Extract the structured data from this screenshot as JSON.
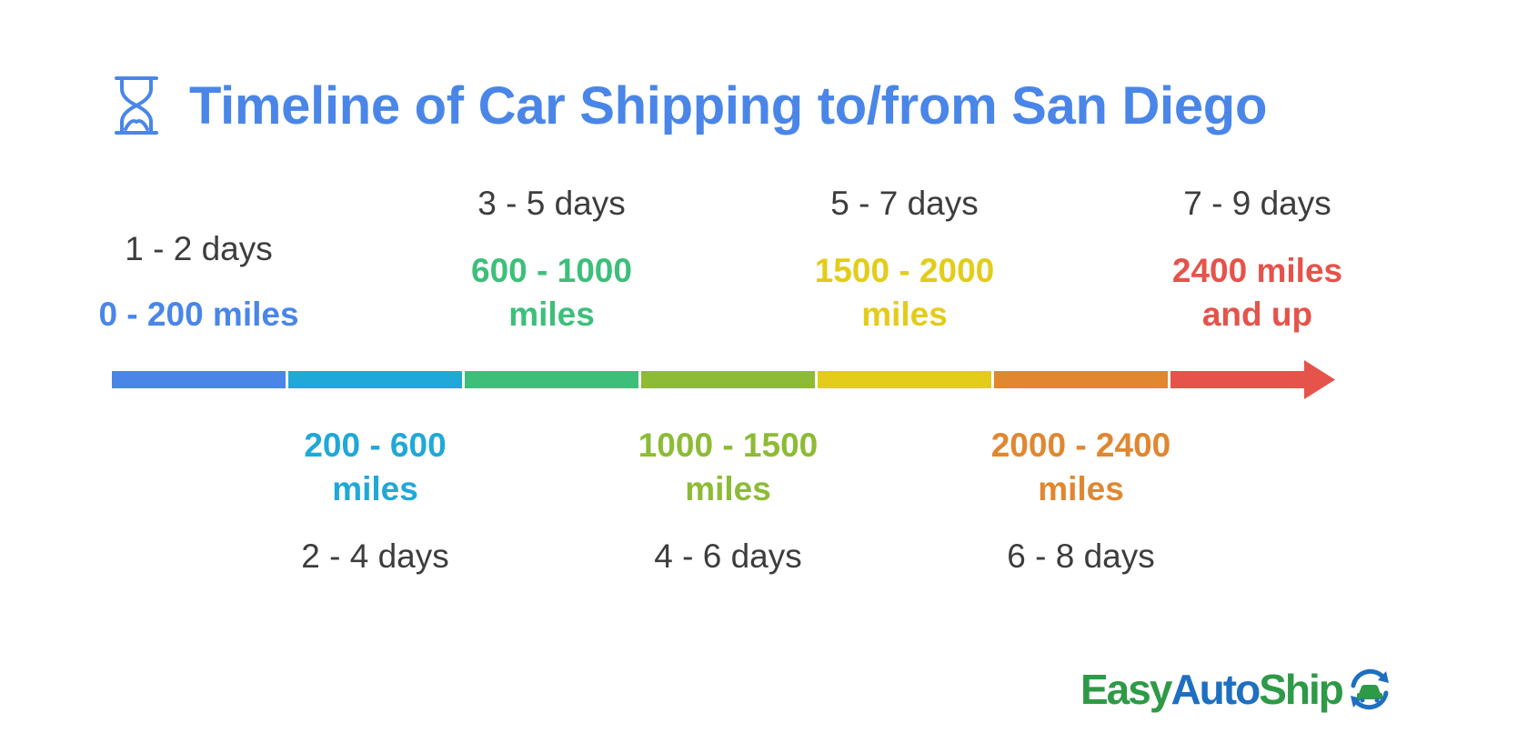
{
  "title": "Timeline of Car Shipping to/from San Diego",
  "title_icon": "hourglass-icon",
  "colors": {
    "title": "#4a86e8",
    "days_text": "#3d3d3d",
    "logo_green": "#2e9a47",
    "logo_blue": "#1f6fc1"
  },
  "stages": [
    {
      "miles": "0 - 200 miles",
      "days": "1 - 2 days",
      "color": "#4a86e8",
      "side": "top"
    },
    {
      "miles": "200 - 600 miles",
      "days": "2 - 4 days",
      "color": "#20a8d8",
      "side": "bottom"
    },
    {
      "miles": "600 - 1000 miles",
      "days": "3 - 5 days",
      "color": "#3dbf7a",
      "side": "top"
    },
    {
      "miles": "1000 - 1500 miles",
      "days": "4 - 6 days",
      "color": "#8dbb35",
      "side": "bottom"
    },
    {
      "miles": "1500 - 2000 miles",
      "days": "5 - 7 days",
      "color": "#e3cc1a",
      "side": "top"
    },
    {
      "miles": "2000 - 2400 miles",
      "days": "6 - 8 days",
      "color": "#e08730",
      "side": "bottom"
    },
    {
      "miles": "2400 miles and up",
      "days": "7 - 9 days",
      "color": "#e5534b",
      "side": "top"
    }
  ],
  "logo": {
    "part1": "Easy",
    "part2": "Auto",
    "part3": "Ship",
    "icon": "car-arrows-icon"
  }
}
